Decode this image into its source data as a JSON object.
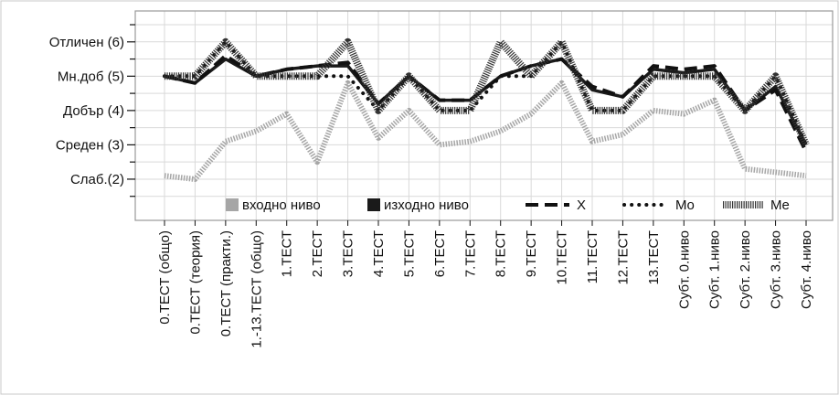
{
  "chart_data": {
    "type": "line",
    "title": "",
    "xlabel": "",
    "ylabel": "",
    "categories": [
      "0.ТЕСТ  (общо)",
      "0.ТЕСТ (теория)",
      "0.ТЕСТ (практи.)",
      "1.-13.ТЕСТ (общо)",
      "1.ТЕСТ",
      "2.ТЕСТ",
      "3.ТЕСТ",
      "4.ТЕСТ",
      "5.ТЕСТ",
      "6.ТЕСТ",
      "7.ТЕСТ",
      "8.ТЕСТ",
      "9.ТЕСТ",
      "10.ТЕСТ",
      "11.ТЕСТ",
      "12.ТЕСТ",
      "13.ТЕСТ",
      "Субт. 0.ниво",
      "Субт. 1.ниво",
      "Субт. 2.ниво",
      "Субт. 3.ниво",
      "Субт. 4.ниво"
    ],
    "y_tick_values": [
      2,
      3,
      4,
      5,
      6
    ],
    "y_tick_labels": [
      "Слаб.(2)",
      "Среден (3)",
      "Добър (4)",
      "Мн.доб (5)",
      "Отличен (6)"
    ],
    "ylim": [
      0.8,
      6.9
    ],
    "grid": true,
    "legend_position": "inside-bottom",
    "colors": {
      "input": "#a6a6a6",
      "output": "#1a1a1a",
      "x": "#111111",
      "mo": "#111111",
      "me": "#333333",
      "grid": "#d9d9d9",
      "frame": "#999999"
    },
    "series": [
      {
        "name": "входно ниво",
        "key": "input",
        "values": [
          2.1,
          2.0,
          3.1,
          3.4,
          3.9,
          2.5,
          4.8,
          3.2,
          4.0,
          3.0,
          3.1,
          3.4,
          3.9,
          4.8,
          3.1,
          3.3,
          4.0,
          3.9,
          4.3,
          2.3,
          2.2,
          2.1
        ]
      },
      {
        "name": "изходно ниво",
        "key": "output",
        "values": [
          5.0,
          4.8,
          5.5,
          5.0,
          5.2,
          5.3,
          5.3,
          4.2,
          5.0,
          4.3,
          4.3,
          5.0,
          5.3,
          5.5,
          4.6,
          4.4,
          5.2,
          5.1,
          5.2,
          4.0,
          4.7,
          3.0
        ]
      },
      {
        "name": "X",
        "key": "x",
        "values": [
          5.0,
          4.8,
          5.6,
          5.0,
          5.2,
          5.3,
          5.4,
          4.2,
          5.0,
          4.3,
          4.3,
          5.0,
          5.3,
          5.5,
          4.7,
          4.4,
          5.3,
          5.2,
          5.3,
          4.0,
          4.6,
          2.8
        ]
      },
      {
        "name": "Mo",
        "key": "mo",
        "values": [
          5.0,
          5.0,
          6.0,
          5.0,
          5.0,
          5.0,
          5.0,
          4.0,
          5.0,
          4.0,
          4.0,
          5.0,
          5.0,
          6.0,
          4.0,
          4.0,
          5.0,
          5.0,
          5.0,
          4.0,
          5.0,
          3.0
        ]
      },
      {
        "name": "Me",
        "key": "me",
        "values": [
          5.0,
          5.0,
          6.0,
          5.0,
          5.0,
          5.0,
          6.0,
          4.0,
          5.0,
          4.0,
          4.0,
          6.0,
          5.0,
          6.0,
          4.0,
          4.0,
          5.0,
          5.0,
          5.0,
          4.0,
          5.0,
          3.0
        ]
      }
    ]
  }
}
